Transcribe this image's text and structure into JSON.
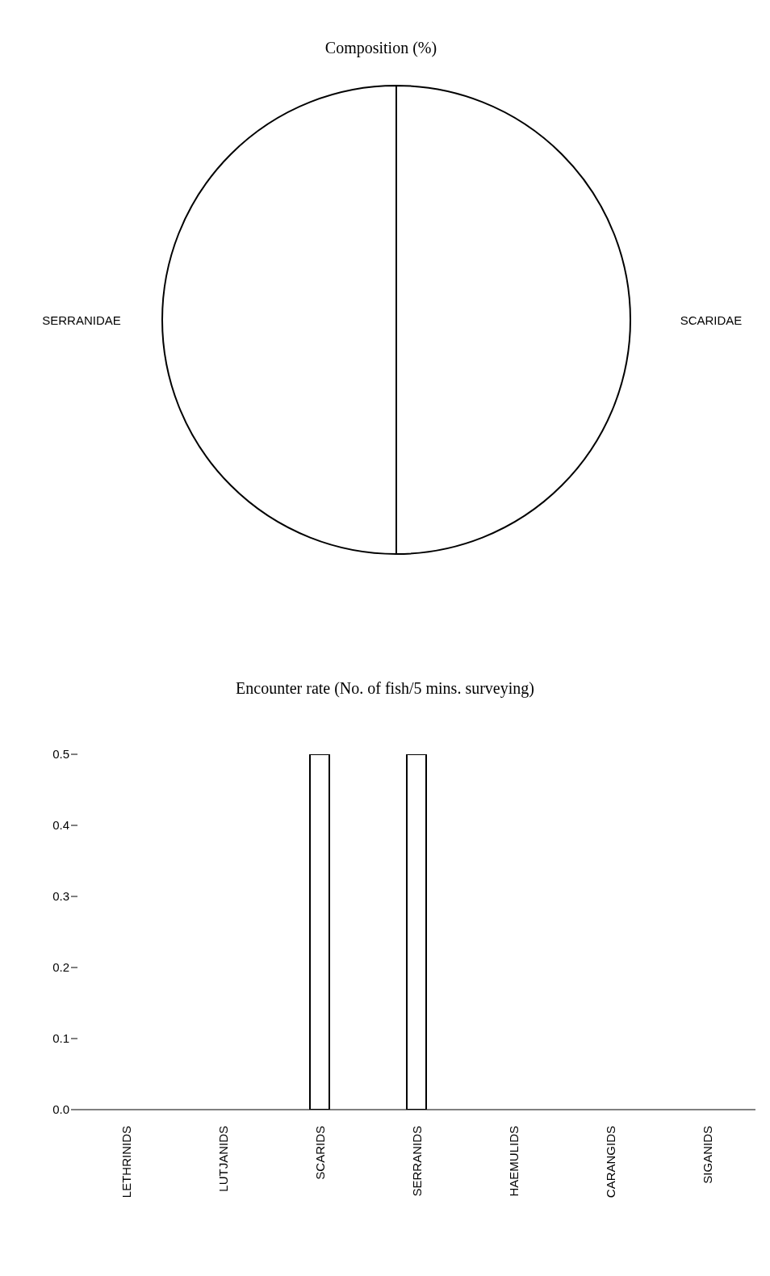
{
  "chart_data": [
    {
      "type": "pie",
      "title": "Composition (%)",
      "categories": [
        "SCARIDAE",
        "SERRANIDAE"
      ],
      "values": [
        50,
        50
      ],
      "colors": [
        "#ffffff",
        "#ffffff"
      ]
    },
    {
      "type": "bar",
      "title": "Encounter rate (No. of fish/5 mins. surveying)",
      "categories": [
        "LETHRINIDS",
        "LUTJANIDS",
        "SCARIDS",
        "SERRANIDS",
        "HAEMULIDS",
        "CARANGIDS",
        "SIGANIDS"
      ],
      "values": [
        0,
        0,
        0.5,
        0.5,
        0,
        0,
        0
      ],
      "color": "#ffffff",
      "ylim": [
        0,
        0.5
      ],
      "yticks": [
        {
          "value": 0,
          "label": "0.0"
        },
        {
          "value": 0.1,
          "label": "0.1"
        },
        {
          "value": 0.2,
          "label": "0.2"
        },
        {
          "value": 0.3,
          "label": "0.3"
        },
        {
          "value": 0.4,
          "label": "0.4"
        },
        {
          "value": 0.5,
          "label": "0.5"
        }
      ],
      "grid": false
    }
  ]
}
